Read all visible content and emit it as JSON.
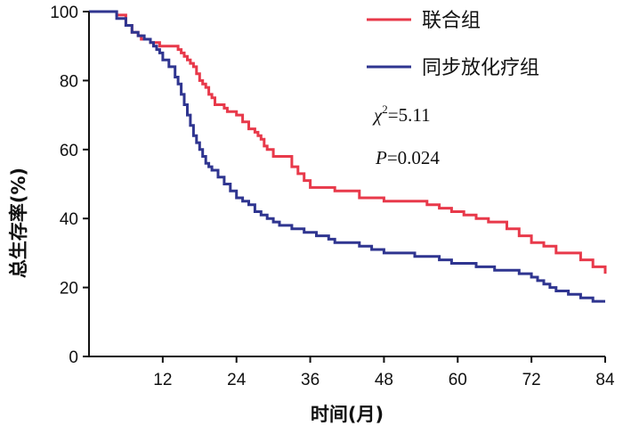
{
  "chart_data": {
    "type": "line",
    "step": true,
    "title": "",
    "xlabel": "时间(月)",
    "ylabel": "总生存率(%)",
    "xlim": [
      0,
      84
    ],
    "ylim": [
      0,
      100
    ],
    "xticks": [
      12,
      24,
      36,
      48,
      60,
      72,
      84
    ],
    "yticks": [
      0,
      20,
      40,
      60,
      80,
      100
    ],
    "grid": false,
    "legend_position": "top-right",
    "annotations": {
      "chi_symbol": "χ",
      "chi_sup": "2",
      "chi_value": "=5.11",
      "p_symbol": "P",
      "p_value": "=0.024"
    },
    "series": [
      {
        "name": "联合组",
        "color": "#e8394a",
        "x": [
          0,
          4,
          4.5,
          6,
          7,
          8,
          8.5,
          9.5,
          10,
          11,
          11.5,
          14,
          14.5,
          15,
          15.5,
          16,
          16.5,
          17,
          17.5,
          18,
          18.5,
          19,
          19.5,
          20,
          20.5,
          22,
          22.5,
          24,
          25,
          26,
          26.5,
          27,
          27.5,
          28,
          28.5,
          29,
          30,
          32,
          33,
          34,
          35,
          36,
          40,
          44,
          48,
          50,
          55,
          57,
          59,
          61,
          63,
          65,
          68,
          70,
          72,
          74,
          76,
          80,
          82,
          84
        ],
        "y": [
          100,
          100,
          99,
          96,
          94,
          93,
          92,
          92,
          91,
          91,
          90,
          90,
          89,
          88,
          87,
          86,
          85,
          84,
          82,
          80,
          79,
          78,
          76,
          75,
          73,
          72,
          71,
          70,
          68,
          66,
          66,
          65,
          64,
          63,
          61,
          60,
          58,
          58,
          55,
          53,
          51,
          49,
          48,
          46,
          45,
          45,
          44,
          43,
          42,
          41,
          40,
          39,
          37,
          35,
          33,
          32,
          30,
          28,
          26,
          24
        ]
      },
      {
        "name": "同步放化疗组",
        "color": "#2f3590",
        "x": [
          0,
          4,
          4.5,
          6,
          7,
          8,
          9,
          10,
          10.5,
          11,
          11.5,
          12,
          13,
          14,
          14.5,
          15,
          15.5,
          16,
          16.5,
          17,
          17.5,
          18,
          18.5,
          19,
          19.5,
          20,
          21,
          22,
          23,
          24,
          25,
          26,
          27,
          28,
          29,
          30,
          31,
          32,
          33,
          34,
          35,
          36,
          37,
          38,
          39,
          40,
          44,
          46,
          48,
          53,
          55,
          57,
          59,
          61,
          63,
          66,
          70,
          72,
          73,
          74,
          75,
          76,
          78,
          80,
          82,
          84
        ],
        "y": [
          100,
          100,
          98,
          96,
          94,
          93,
          92,
          91,
          90,
          89,
          88,
          86,
          84,
          81,
          79,
          76,
          73,
          70,
          67,
          64,
          62,
          60,
          58,
          56,
          55,
          54,
          52,
          50,
          48,
          46,
          45,
          44,
          42,
          41,
          40,
          39,
          38,
          38,
          37,
          37,
          36,
          36,
          35,
          35,
          34,
          33,
          32,
          31,
          30,
          29,
          29,
          28,
          27,
          27,
          26,
          25,
          24,
          23,
          22,
          21,
          20,
          19,
          18,
          17,
          16,
          16
        ]
      }
    ]
  }
}
